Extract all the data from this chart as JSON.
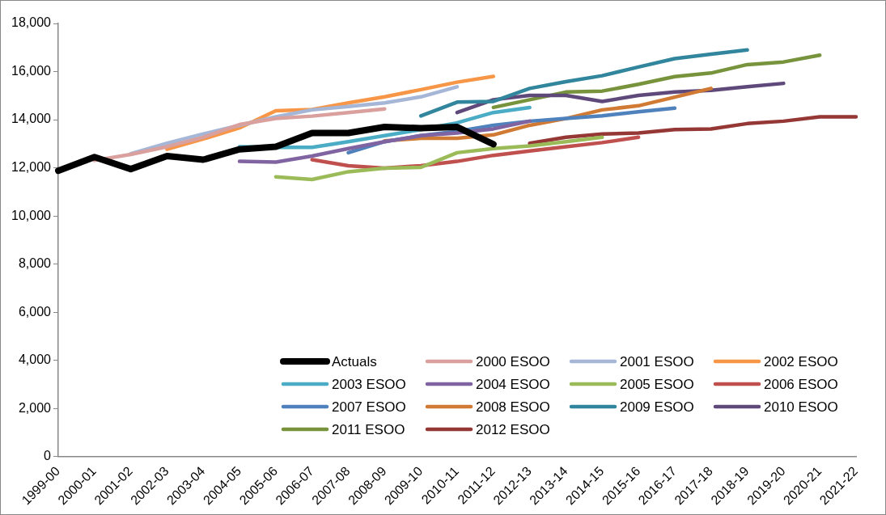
{
  "chart_data": {
    "type": "line",
    "categories": [
      "1999-00",
      "2000-01",
      "2001-02",
      "2002-03",
      "2003-04",
      "2004-05",
      "2005-06",
      "2006-07",
      "2007-08",
      "2008-09",
      "2009-10",
      "2010-11",
      "2011-12",
      "2012-13",
      "2013-14",
      "2014-15",
      "2015-16",
      "2016-17",
      "2017-18",
      "2018-19",
      "2019-20",
      "2020-21",
      "2021-22"
    ],
    "ylim": [
      0,
      18000
    ],
    "yticks": [
      {
        "value": 0,
        "label": "0"
      },
      {
        "value": 2000,
        "label": "2,000"
      },
      {
        "value": 4000,
        "label": "4,000"
      },
      {
        "value": 6000,
        "label": "6,000"
      },
      {
        "value": 8000,
        "label": "8,000"
      },
      {
        "value": 10000,
        "label": "10,000"
      },
      {
        "value": 12000,
        "label": "12,000"
      },
      {
        "value": 14000,
        "label": "14,000"
      },
      {
        "value": 16000,
        "label": "16,000"
      },
      {
        "value": 18000,
        "label": "18,000"
      }
    ],
    "grid": false,
    "legend": "bottom right",
    "marker": "none",
    "line_style": "solid",
    "series": [
      {
        "name": "Actuals",
        "color": "#000000",
        "values": [
          11880,
          12450,
          11950,
          12490,
          12340,
          12770,
          12880,
          13450,
          13450,
          13700,
          13650,
          13700,
          12980,
          null,
          null,
          null,
          null,
          null,
          null,
          null,
          null,
          null,
          null
        ]
      },
      {
        "name": "2000 ESOO",
        "color": "#d9a09e",
        "values": [
          null,
          12310,
          12560,
          12880,
          13270,
          13800,
          14050,
          14150,
          14300,
          14450,
          null,
          null,
          null,
          null,
          null,
          null,
          null,
          null,
          null,
          null,
          null,
          null,
          null
        ]
      },
      {
        "name": "2001 ESOO",
        "color": "#a5b6d6",
        "values": [
          null,
          null,
          12590,
          13020,
          13410,
          13770,
          14120,
          14410,
          14550,
          14700,
          14950,
          15370,
          null,
          null,
          null,
          null,
          null,
          null,
          null,
          null,
          null,
          null,
          null
        ]
      },
      {
        "name": "2002 ESOO",
        "color": "#f79646",
        "values": [
          null,
          null,
          null,
          12770,
          13200,
          13660,
          14370,
          14420,
          14700,
          14950,
          15250,
          15560,
          15800,
          null,
          null,
          null,
          null,
          null,
          null,
          null,
          null,
          null,
          null
        ]
      },
      {
        "name": "2003 ESOO",
        "color": "#4bacc6",
        "values": [
          null,
          null,
          null,
          null,
          null,
          12880,
          12850,
          12850,
          13090,
          13340,
          13590,
          13870,
          14300,
          14510,
          null,
          null,
          null,
          null,
          null,
          null,
          null,
          null,
          null
        ]
      },
      {
        "name": "2004 ESOO",
        "color": "#8064a2",
        "values": [
          null,
          null,
          null,
          null,
          null,
          12270,
          12240,
          12490,
          12800,
          13090,
          13340,
          13450,
          13620,
          13940,
          null,
          null,
          null,
          null,
          null,
          null,
          null,
          null,
          null
        ]
      },
      {
        "name": "2005 ESOO",
        "color": "#9bbb59",
        "values": [
          null,
          null,
          null,
          null,
          null,
          null,
          11630,
          11520,
          11840,
          11990,
          12020,
          12630,
          12800,
          12910,
          13090,
          13270,
          null,
          null,
          null,
          null,
          null,
          null,
          null
        ]
      },
      {
        "name": "2006 ESOO",
        "color": "#c0504d",
        "values": [
          null,
          null,
          null,
          null,
          null,
          null,
          null,
          12340,
          12090,
          11990,
          12090,
          12270,
          12520,
          12700,
          12880,
          13050,
          13270,
          null,
          null,
          null,
          null,
          null,
          null
        ]
      },
      {
        "name": "2007 ESOO",
        "color": "#4f81bd",
        "values": [
          null,
          null,
          null,
          null,
          null,
          null,
          null,
          null,
          12630,
          13090,
          13340,
          13520,
          13770,
          13940,
          14050,
          14160,
          14330,
          14480,
          null,
          null,
          null,
          null,
          null
        ]
      },
      {
        "name": "2008 ESOO",
        "color": "#d07a34",
        "values": [
          null,
          null,
          null,
          null,
          null,
          null,
          null,
          null,
          null,
          13120,
          13230,
          13230,
          13370,
          13770,
          14050,
          14410,
          14580,
          14940,
          15300,
          null,
          null,
          null,
          null
        ]
      },
      {
        "name": "2009 ESOO",
        "color": "#31859c",
        "values": [
          null,
          null,
          null,
          null,
          null,
          null,
          null,
          null,
          null,
          null,
          14160,
          14730,
          14760,
          15300,
          15580,
          15830,
          16190,
          16540,
          16720,
          16900,
          null,
          null,
          null
        ]
      },
      {
        "name": "2010 ESOO",
        "color": "#5f497a",
        "values": [
          null,
          null,
          null,
          null,
          null,
          null,
          null,
          null,
          null,
          null,
          null,
          14300,
          14830,
          15010,
          15010,
          14760,
          15010,
          15150,
          15220,
          15370,
          15510,
          null,
          null
        ]
      },
      {
        "name": "2011 ESOO",
        "color": "#77933c",
        "values": [
          null,
          null,
          null,
          null,
          null,
          null,
          null,
          null,
          null,
          null,
          null,
          null,
          14510,
          14830,
          15150,
          15190,
          15470,
          15790,
          15940,
          16290,
          16400,
          16680,
          null
        ]
      },
      {
        "name": "2012 ESOO",
        "color": "#953735",
        "values": [
          null,
          null,
          null,
          null,
          null,
          null,
          null,
          null,
          null,
          null,
          null,
          null,
          null,
          13020,
          13270,
          13410,
          13450,
          13590,
          13620,
          13840,
          13940,
          14120,
          14120
        ]
      }
    ]
  }
}
